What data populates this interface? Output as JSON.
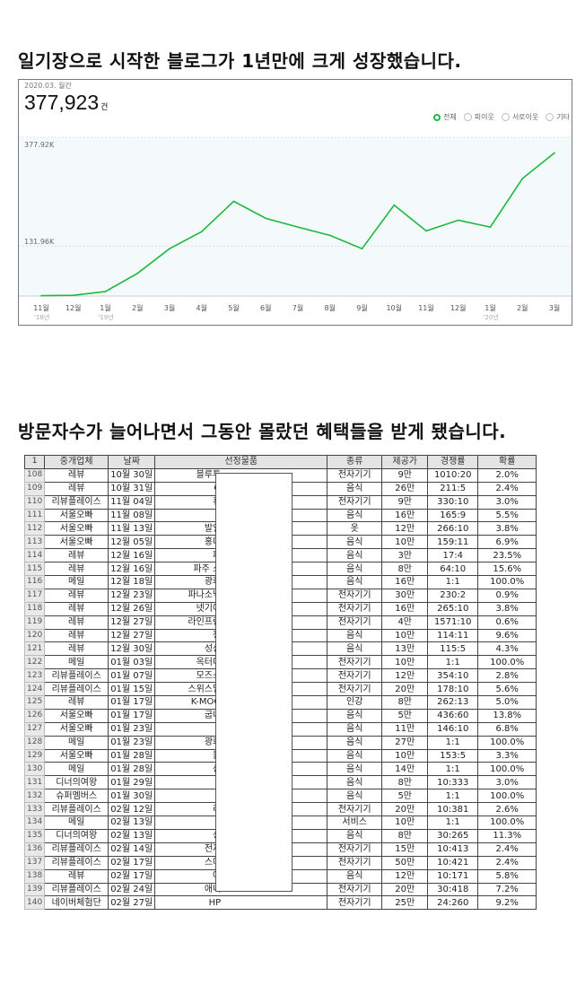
{
  "headings": {
    "first": "일기장으로 시작한 블로그가 1년만에 크게 성장했습니다.",
    "second": "방문자수가 늘어나면서 그동안 몰랐던 혜택들을 받게 됐습니다."
  },
  "stats": {
    "period": "2020.03. 월간",
    "total": "377,923",
    "unit": "건",
    "legend": [
      {
        "label": "전체",
        "selected": true
      },
      {
        "label": "피이웃",
        "selected": false
      },
      {
        "label": "서로이웃",
        "selected": false
      },
      {
        "label": "기타",
        "selected": false
      }
    ]
  },
  "chart_data": {
    "type": "line",
    "categories": [
      "11월",
      "12월",
      "1월",
      "2월",
      "3월",
      "4월",
      "5월",
      "6월",
      "7월",
      "8월",
      "9월",
      "10월",
      "11월",
      "12월",
      "1월",
      "2월",
      "3월"
    ],
    "year_labels": [
      {
        "index": 0,
        "label": "'18년"
      },
      {
        "index": 2,
        "label": "'19년"
      },
      {
        "index": 14,
        "label": "'20년"
      }
    ],
    "values": [
      1,
      2,
      12,
      60,
      125,
      170,
      250,
      205,
      182,
      160,
      125,
      240,
      172,
      200,
      182,
      310,
      377.92
    ],
    "unit": "K",
    "yticks": [
      {
        "value": 131.96,
        "label": "131.96K"
      },
      {
        "value": 377.92,
        "label": "377.92K"
      }
    ],
    "ylim": [
      0,
      400
    ],
    "line_color": "#1db83f",
    "grid": true
  },
  "table": {
    "corner": "1",
    "headers": [
      "중개업체",
      "날짜",
      "선정물품",
      "종류",
      "제공가",
      "경쟁률",
      "확률"
    ],
    "rows": [
      [
        "108",
        "레뷰",
        "10월 30일",
        "블루투",
        "전자기기",
        "9만",
        "1010:20",
        "2.0%"
      ],
      [
        "109",
        "레뷰",
        "10월 31일",
        "O",
        "음식",
        "26만",
        "211:5",
        "2.4%"
      ],
      [
        "110",
        "리뷰플레이스",
        "11월 04일",
        "휴",
        "전자기기",
        "9만",
        "330:10",
        "3.0%"
      ],
      [
        "111",
        "서울오빠",
        "11월 08일",
        "",
        "음식",
        "16만",
        "165:9",
        "5.5%"
      ],
      [
        "112",
        "서울오빠",
        "11월 13일",
        "발일",
        "옷",
        "12만",
        "266:10",
        "3.8%"
      ],
      [
        "113",
        "서울오빠",
        "12월 05일",
        "홍디",
        "음식",
        "10만",
        "159:11",
        "6.9%"
      ],
      [
        "114",
        "레뷰",
        "12월 16일",
        "파",
        "음식",
        "3만",
        "17:4",
        "23.5%"
      ],
      [
        "115",
        "레뷰",
        "12월 16일",
        "파주 소",
        "음식",
        "8만",
        "64:10",
        "15.6%"
      ],
      [
        "116",
        "메일",
        "12월 18일",
        "광화",
        "음식",
        "16만",
        "1:1",
        "100.0%"
      ],
      [
        "117",
        "레뷰",
        "12월 23일",
        "파나소닉",
        "전자기기",
        "30만",
        "230:2",
        "0.9%"
      ],
      [
        "118",
        "레뷰",
        "12월 26일",
        "넷기어",
        "전자기기",
        "16만",
        "265:10",
        "3.8%"
      ],
      [
        "119",
        "레뷰",
        "12월 27일",
        "라인프런",
        "전자기기",
        "4만",
        "1571:10",
        "0.6%"
      ],
      [
        "120",
        "레뷰",
        "12월 27일",
        "청",
        "음식",
        "10만",
        "114:11",
        "9.6%"
      ],
      [
        "121",
        "레뷰",
        "12월 30일",
        "성신",
        "음식",
        "13만",
        "115:5",
        "4.3%"
      ],
      [
        "122",
        "메일",
        "01월 03일",
        "옥터디",
        "전자기기",
        "10만",
        "1:1",
        "100.0%"
      ],
      [
        "123",
        "리뷰플레이스",
        "01월 07일",
        "모즈스",
        "전자기기",
        "12만",
        "354:10",
        "2.8%"
      ],
      [
        "124",
        "리뷰플레이스",
        "01월 15일",
        "스위스밀",
        "전자기기",
        "20만",
        "178:10",
        "5.6%"
      ],
      [
        "125",
        "레뷰",
        "01월 17일",
        "K-MOO",
        "인강",
        "8만",
        "262:13",
        "5.0%"
      ],
      [
        "126",
        "서울오빠",
        "01월 17일",
        "굽네",
        "음식",
        "5만",
        "436:60",
        "13.8%"
      ],
      [
        "127",
        "서울오빠",
        "01월 23일",
        "",
        "음식",
        "11만",
        "146:10",
        "6.8%"
      ],
      [
        "128",
        "메일",
        "01월 23일",
        "광화",
        "음식",
        "27만",
        "1:1",
        "100.0%"
      ],
      [
        "129",
        "서울오빠",
        "01월 28일",
        "을",
        "음식",
        "10만",
        "153:5",
        "3.3%"
      ],
      [
        "130",
        "메일",
        "01월 28일",
        "선",
        "음식",
        "14만",
        "1:1",
        "100.0%"
      ],
      [
        "131",
        "디너의여왕",
        "01월 29일",
        "",
        "음식",
        "8만",
        "10:333",
        "3.0%"
      ],
      [
        "132",
        "슈퍼멤버스",
        "01월 30일",
        "",
        "음식",
        "5만",
        "1:1",
        "100.0%"
      ],
      [
        "133",
        "리뷰플레이스",
        "02월 12일",
        "리",
        "전자기기",
        "20만",
        "10:381",
        "2.6%"
      ],
      [
        "134",
        "메일",
        "02월 13일",
        "",
        "서비스",
        "10만",
        "1:1",
        "100.0%"
      ],
      [
        "135",
        "디너의여왕",
        "02월 13일",
        "싱",
        "음식",
        "8만",
        "30:265",
        "11.3%"
      ],
      [
        "136",
        "리뷰플레이스",
        "02월 14일",
        "전자",
        "전자기기",
        "15만",
        "10:413",
        "2.4%"
      ],
      [
        "137",
        "리뷰플레이스",
        "02월 17일",
        "스마",
        "전자기기",
        "50만",
        "10:421",
        "2.4%"
      ],
      [
        "138",
        "레뷰",
        "02월 17일",
        "여",
        "음식",
        "12만",
        "10:171",
        "5.8%"
      ],
      [
        "139",
        "리뷰플레이스",
        "02월 24일",
        "애니",
        "전자기기",
        "20만",
        "30:418",
        "7.2%"
      ],
      [
        "140",
        "네이버체험단",
        "02월 27일",
        "HP",
        "전자기기",
        "25만",
        "24:260",
        "9.2%"
      ]
    ]
  }
}
